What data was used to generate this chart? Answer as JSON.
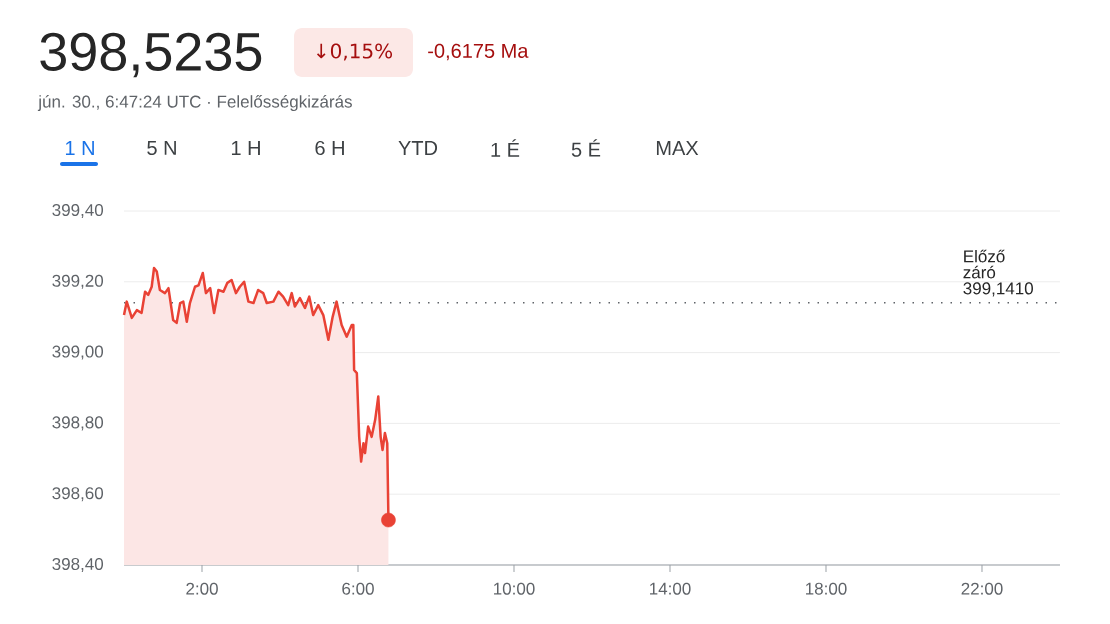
{
  "chart_data": {
    "type": "area",
    "title": "398,5235",
    "subtitle": "jún. 30., 6:47:24 UTC · Felelősségkizárás",
    "annotations": [
      "↓0,15%",
      "-0,6175 Ma",
      "1 N",
      "5 N",
      "1 H",
      "6 H",
      "YTD",
      "1 É",
      "5 É",
      "MAX"
    ],
    "xlim": [
      0,
      24
    ],
    "xticks": [
      {
        "value": 2,
        "label": "2:00"
      },
      {
        "value": 6,
        "label": "6:00"
      },
      {
        "value": 10,
        "label": "10:00"
      },
      {
        "value": 14,
        "label": "14:00"
      },
      {
        "value": 18,
        "label": "18:00"
      },
      {
        "value": 22,
        "label": "22:00"
      }
    ],
    "ylim": [
      398.4,
      399.4
    ],
    "yticks": [
      {
        "value": 398.4,
        "label": "398,40"
      },
      {
        "value": 398.6,
        "label": "398,60"
      },
      {
        "value": 398.8,
        "label": "398,80"
      },
      {
        "value": 399.0,
        "label": "399,00"
      },
      {
        "value": 399.2,
        "label": "399,20"
      },
      {
        "value": 399.4,
        "label": "399,40"
      }
    ],
    "grid": "y",
    "ref_lines": [
      {
        "axis": "y",
        "value": 399.141,
        "label": "Előző záró 399,1410",
        "color": "#5f6368",
        "line_style": "dotted"
      }
    ],
    "series": [
      {
        "color": "#e94235",
        "x": [
          0,
          0.07,
          0.2,
          0.33,
          0.45,
          0.54,
          0.62,
          0.71,
          0.77,
          0.84,
          0.92,
          1.05,
          1.14,
          1.26,
          1.35,
          1.44,
          1.52,
          1.61,
          1.69,
          1.82,
          1.91,
          2.02,
          2.1,
          2.21,
          2.31,
          2.42,
          2.55,
          2.65,
          2.76,
          2.87,
          2.97,
          3.08,
          3.19,
          3.32,
          3.44,
          3.57,
          3.66,
          3.83,
          3.96,
          4.08,
          4.21,
          4.3,
          4.38,
          4.51,
          4.64,
          4.75,
          4.85,
          4.98,
          5.11,
          5.24,
          5.35,
          5.45,
          5.58,
          5.71,
          5.84,
          5.88,
          5.9,
          5.97,
          6.03,
          6.08,
          6.14,
          6.18,
          6.26,
          6.35,
          6.44,
          6.52,
          6.58,
          6.63,
          6.69,
          6.75,
          6.78
        ],
        "values": [
          399.106,
          399.144,
          399.098,
          399.12,
          399.112,
          399.172,
          399.163,
          399.186,
          399.239,
          399.229,
          399.177,
          399.168,
          399.182,
          399.092,
          399.084,
          399.14,
          399.144,
          399.087,
          399.14,
          399.186,
          399.19,
          399.225,
          399.168,
          399.182,
          399.112,
          399.177,
          399.172,
          399.197,
          399.205,
          399.168,
          399.186,
          399.2,
          399.144,
          399.14,
          399.177,
          399.168,
          399.14,
          399.144,
          399.172,
          399.158,
          399.134,
          399.168,
          399.13,
          399.154,
          399.126,
          399.158,
          399.106,
          399.134,
          399.106,
          399.036,
          399.101,
          399.144,
          399.078,
          399.045,
          399.078,
          399.078,
          398.951,
          398.942,
          398.762,
          398.692,
          398.744,
          398.716,
          398.791,
          398.762,
          398.81,
          398.876,
          398.762,
          398.725,
          398.773,
          398.744,
          398.527
        ]
      },
      {
        "type": "scatter",
        "color": "#e94235",
        "marker": "circle",
        "x": [
          6.78
        ],
        "values": [
          398.527
        ]
      }
    ]
  }
}
